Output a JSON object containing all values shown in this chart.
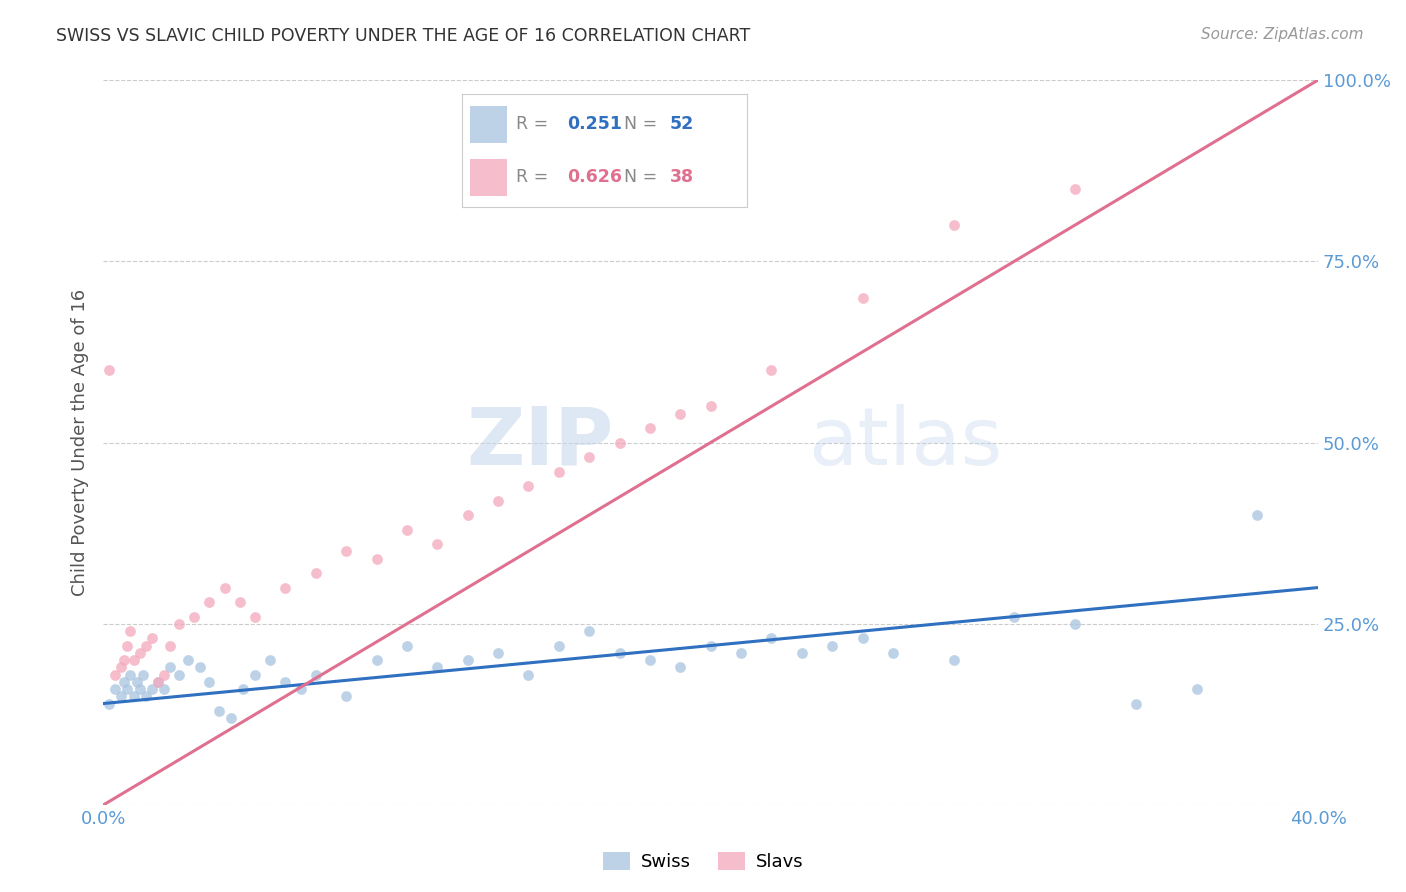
{
  "title": "SWISS VS SLAVIC CHILD POVERTY UNDER THE AGE OF 16 CORRELATION CHART",
  "source": "Source: ZipAtlas.com",
  "ylabel": "Child Poverty Under the Age of 16",
  "xlim": [
    0.0,
    0.4
  ],
  "ylim": [
    0.0,
    1.0
  ],
  "xticks": [
    0.0,
    0.1,
    0.2,
    0.3,
    0.4
  ],
  "xtick_labels": [
    "0.0%",
    "",
    "",
    "",
    "40.0%"
  ],
  "ytick_labels": [
    "",
    "25.0%",
    "50.0%",
    "75.0%",
    "100.0%"
  ],
  "yticks": [
    0.0,
    0.25,
    0.5,
    0.75,
    1.0
  ],
  "grid_color": "#cccccc",
  "background_color": "#ffffff",
  "swiss_color": "#a8c4e0",
  "slavs_color": "#f4a8bc",
  "swiss_line_color": "#3070c0",
  "slavs_line_color": "#e07090",
  "legend_swiss_R": "0.251",
  "legend_swiss_N": "52",
  "legend_slavs_R": "0.626",
  "legend_slavs_N": "38",
  "watermark_zip": "ZIP",
  "watermark_atlas": "atlas",
  "title_color": "#333333",
  "tick_label_color": "#5b9bd5",
  "swiss_line_x0": 0.0,
  "swiss_line_y0": 0.14,
  "swiss_line_x1": 0.4,
  "swiss_line_y1": 0.3,
  "slavs_line_x0": 0.0,
  "slavs_line_y0": 0.0,
  "slavs_line_x1": 0.4,
  "slavs_line_y1": 1.0,
  "swiss_points_x": [
    0.002,
    0.004,
    0.006,
    0.007,
    0.008,
    0.009,
    0.01,
    0.011,
    0.012,
    0.013,
    0.014,
    0.016,
    0.018,
    0.02,
    0.022,
    0.025,
    0.028,
    0.032,
    0.035,
    0.038,
    0.042,
    0.046,
    0.05,
    0.055,
    0.06,
    0.065,
    0.07,
    0.08,
    0.09,
    0.1,
    0.11,
    0.12,
    0.13,
    0.14,
    0.15,
    0.16,
    0.17,
    0.18,
    0.19,
    0.2,
    0.21,
    0.22,
    0.23,
    0.24,
    0.25,
    0.26,
    0.28,
    0.3,
    0.32,
    0.34,
    0.36,
    0.38
  ],
  "swiss_points_y": [
    0.14,
    0.16,
    0.15,
    0.17,
    0.16,
    0.18,
    0.15,
    0.17,
    0.16,
    0.18,
    0.15,
    0.16,
    0.17,
    0.16,
    0.19,
    0.18,
    0.2,
    0.19,
    0.17,
    0.13,
    0.12,
    0.16,
    0.18,
    0.2,
    0.17,
    0.16,
    0.18,
    0.15,
    0.2,
    0.22,
    0.19,
    0.2,
    0.21,
    0.18,
    0.22,
    0.24,
    0.21,
    0.2,
    0.19,
    0.22,
    0.21,
    0.23,
    0.21,
    0.22,
    0.23,
    0.21,
    0.2,
    0.26,
    0.25,
    0.14,
    0.16,
    0.4
  ],
  "slavs_points_x": [
    0.002,
    0.004,
    0.006,
    0.007,
    0.008,
    0.009,
    0.01,
    0.012,
    0.014,
    0.016,
    0.018,
    0.02,
    0.022,
    0.025,
    0.03,
    0.035,
    0.04,
    0.045,
    0.05,
    0.06,
    0.07,
    0.08,
    0.09,
    0.1,
    0.11,
    0.12,
    0.13,
    0.14,
    0.15,
    0.16,
    0.17,
    0.18,
    0.19,
    0.2,
    0.22,
    0.25,
    0.28,
    0.32
  ],
  "slavs_points_y": [
    0.6,
    0.18,
    0.19,
    0.2,
    0.22,
    0.24,
    0.2,
    0.21,
    0.22,
    0.23,
    0.17,
    0.18,
    0.22,
    0.25,
    0.26,
    0.28,
    0.3,
    0.28,
    0.26,
    0.3,
    0.32,
    0.35,
    0.34,
    0.38,
    0.36,
    0.4,
    0.42,
    0.44,
    0.46,
    0.48,
    0.5,
    0.52,
    0.54,
    0.55,
    0.6,
    0.7,
    0.8,
    0.85
  ],
  "swiss_marker_size": 60,
  "slavs_marker_size": 60
}
